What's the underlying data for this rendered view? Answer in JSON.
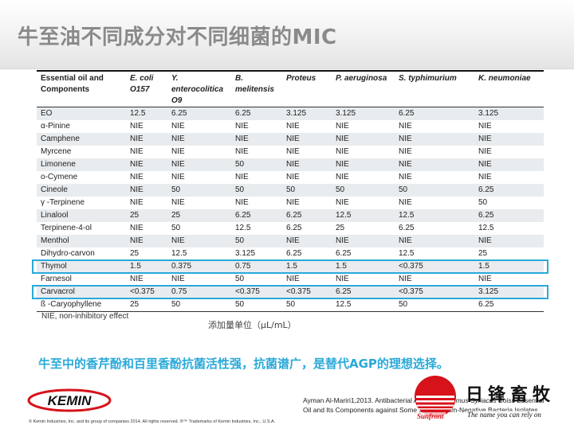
{
  "title": "牛至油不同成分对不同细菌的MIC",
  "table": {
    "headers": [
      {
        "text": "Essential oil and Components",
        "italic": false
      },
      {
        "text": "E. coli O157",
        "italic": true
      },
      {
        "text": "Y. enterocolitica O9",
        "italic": true
      },
      {
        "text": "B. melitensis",
        "italic": true
      },
      {
        "text": "Proteus",
        "italic": true
      },
      {
        "text": "P. aeruginosa",
        "italic": true
      },
      {
        "text": "S. typhimurium",
        "italic": true
      },
      {
        "text": "K. neumoniae",
        "italic": true
      }
    ],
    "rows": [
      [
        "EO",
        "12.5",
        "6.25",
        "6.25",
        "3.125",
        "3.125",
        "6.25",
        "3.125"
      ],
      [
        "α-Pinine",
        "NIE",
        "NIE",
        "NIE",
        "NIE",
        "NIE",
        "NIE",
        "NIE"
      ],
      [
        "Camphene",
        "NIE",
        "NIE",
        "NIE",
        "NIE",
        "NIE",
        "NIE",
        "NIE"
      ],
      [
        "Myrcene",
        "NIE",
        "NIE",
        "NIE",
        "NIE",
        "NIE",
        "NIE",
        "NIE"
      ],
      [
        "Limonene",
        "NIE",
        "NIE",
        "50",
        "NIE",
        "NIE",
        "NIE",
        "NIE"
      ],
      [
        "o-Cymene",
        "NIE",
        "NIE",
        "NIE",
        "NIE",
        "NIE",
        "NIE",
        "NIE"
      ],
      [
        "Cineole",
        "NIE",
        "50",
        "50",
        "50",
        "50",
        "50",
        "6.25"
      ],
      [
        "γ -Terpinene",
        "NIE",
        "NIE",
        "NIE",
        "NIE",
        "NIE",
        "NIE",
        "50"
      ],
      [
        "Linalool",
        "25",
        "25",
        "6.25",
        "6.25",
        "12.5",
        "12.5",
        "6.25"
      ],
      [
        "Terpinene-4-ol",
        "NIE",
        "50",
        "12.5",
        "6.25",
        "25",
        "6.25",
        "12.5"
      ],
      [
        "Menthol",
        "NIE",
        "NIE",
        "50",
        "NIE",
        "NIE",
        "NIE",
        "NIE"
      ],
      [
        "Dihydro-carvon",
        "25",
        "12.5",
        "3.125",
        "6.25",
        "6.25",
        "12.5",
        "25"
      ],
      [
        "Thymol",
        "1.5",
        "0.375",
        "0.75",
        "1.5",
        "1.5",
        "<0.375",
        "1.5"
      ],
      [
        "Farnesol",
        "NIE",
        "NIE",
        "50",
        "NIE",
        "NIE",
        "NIE",
        "NIE"
      ],
      [
        "Carvacrol",
        "<0.375",
        "0.75",
        "<0.375",
        "<0.375",
        "6.25",
        "<0.375",
        "3.125"
      ],
      [
        "ß -Caryophyllene",
        "25",
        "50",
        "50",
        "50",
        "12.5",
        "50",
        "6.25"
      ]
    ],
    "highlighted_rows": [
      "Thymol",
      "Carvacrol"
    ],
    "highlight_color": "#2aa9d9"
  },
  "footnote": "NIE, non-inhibitory effect",
  "unit_note": "添加量单位（μL/mL）",
  "conclusion": "牛至中的香芹酚和百里香酚抗菌活性强，抗菌谱广，是替代AGP的理想选择。",
  "kemin_logo": "KEMIN",
  "copyright": "© Kemin Industries, Inc. and its group of companies 2014. All rights reserved. ®™ Trademarks of Kemin Industries, Inc., U.S.A.",
  "citation": {
    "line1_pre": "Ayman Al-Mariri1,2013. Antibacterial Activity of ",
    "line1_italic": "Thymus Syriacus",
    "line1_post": " Boiss Essential",
    "line2": "Oil and Its Components against Some Syrian Gram-Negative Bacteria Isolates"
  },
  "brand": {
    "name_cn": "日锋畜牧",
    "sunfront": "Sunfront",
    "tagline": "The name you can rely on",
    "red": "#d6121b"
  }
}
